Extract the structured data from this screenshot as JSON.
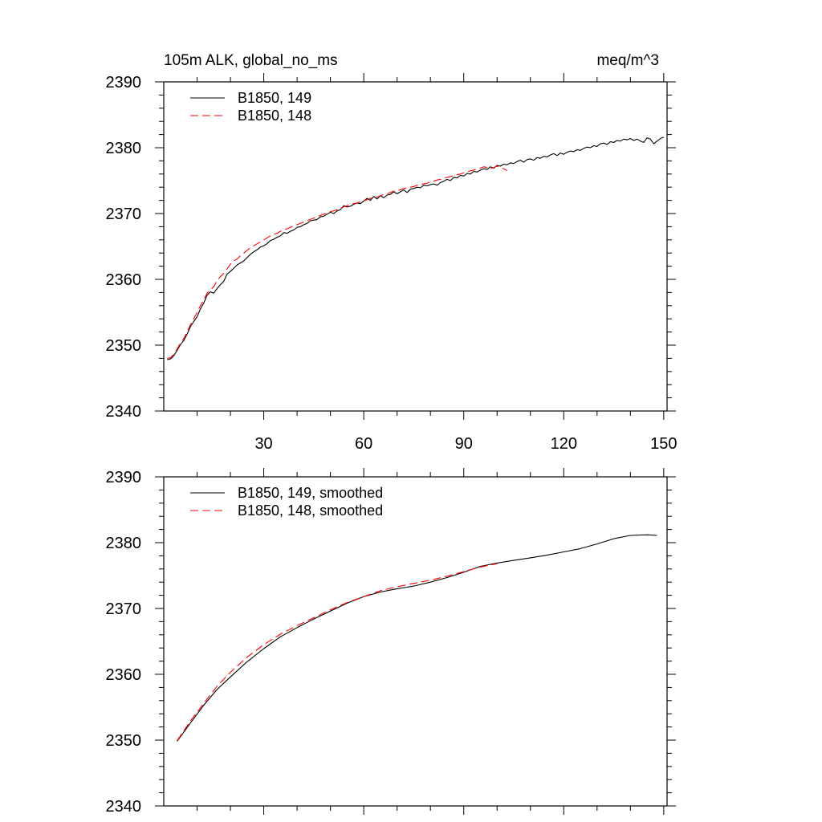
{
  "header": {
    "title": "105m ALK, global_no_ms",
    "units": "meq/m^3"
  },
  "colors": {
    "series_1": "#000000",
    "series_2": "#ff0000"
  },
  "chart_data": [
    {
      "type": "line",
      "title": "105m ALK, global_no_ms",
      "units": "meq/m^3",
      "xlim": [
        0,
        151
      ],
      "ylim": [
        2340,
        2390
      ],
      "xticks": [
        30,
        60,
        90,
        120,
        150
      ],
      "yticks": [
        2340,
        2350,
        2360,
        2370,
        2380,
        2390
      ],
      "legend": "top-left",
      "grid": false,
      "series": [
        {
          "name": "B1850, 149",
          "style": "solid",
          "x": [
            1,
            2,
            3,
            4,
            5,
            6,
            7,
            8,
            9,
            10,
            11,
            12,
            13,
            14,
            15,
            16,
            17,
            18,
            19,
            20,
            21,
            22,
            23,
            24,
            25,
            26,
            27,
            28,
            29,
            30,
            31,
            32,
            33,
            34,
            35,
            36,
            37,
            38,
            39,
            40,
            41,
            42,
            43,
            44,
            45,
            46,
            47,
            48,
            49,
            50,
            51,
            52,
            53,
            54,
            55,
            56,
            57,
            58,
            59,
            60,
            61,
            62,
            63,
            64,
            65,
            66,
            67,
            68,
            69,
            70,
            71,
            72,
            73,
            74,
            75,
            76,
            77,
            78,
            79,
            80,
            81,
            82,
            83,
            84,
            85,
            86,
            87,
            88,
            89,
            90,
            91,
            92,
            93,
            94,
            95,
            96,
            97,
            98,
            99,
            100,
            101,
            102,
            103,
            104,
            105,
            106,
            107,
            108,
            109,
            110,
            111,
            112,
            113,
            114,
            115,
            116,
            117,
            118,
            119,
            120,
            121,
            122,
            123,
            124,
            125,
            126,
            127,
            128,
            129,
            130,
            131,
            132,
            133,
            134,
            135,
            136,
            137,
            138,
            139,
            140,
            141,
            142,
            143,
            144,
            145,
            146,
            147,
            148,
            149,
            150
          ],
          "y": [
            2347.8,
            2347.9,
            2348.4,
            2349.2,
            2350.1,
            2350.7,
            2351.7,
            2352.8,
            2353.6,
            2354.3,
            2355.5,
            2356.4,
            2357.6,
            2358.1,
            2357.9,
            2358.6,
            2359.2,
            2359.7,
            2360.8,
            2361.2,
            2361.7,
            2362.2,
            2362.5,
            2362.8,
            2363.3,
            2363.8,
            2364.2,
            2364.5,
            2364.9,
            2365.1,
            2365.4,
            2365.9,
            2366.1,
            2366.4,
            2366.6,
            2367.1,
            2367.0,
            2367.3,
            2367.5,
            2367.9,
            2368.0,
            2368.3,
            2368.5,
            2368.9,
            2369.0,
            2369.1,
            2369.5,
            2369.6,
            2369.9,
            2370.2,
            2370.0,
            2370.4,
            2370.6,
            2371.2,
            2371.0,
            2371.1,
            2371.4,
            2371.6,
            2371.5,
            2371.9,
            2372.3,
            2372.0,
            2372.6,
            2372.2,
            2372.7,
            2372.4,
            2372.8,
            2372.9,
            2373.3,
            2373.0,
            2373.3,
            2373.6,
            2373.2,
            2373.7,
            2373.8,
            2374.0,
            2373.9,
            2374.3,
            2374.2,
            2374.4,
            2374.5,
            2374.3,
            2374.7,
            2374.9,
            2375.2,
            2375.0,
            2375.5,
            2375.4,
            2375.8,
            2375.7,
            2376.1,
            2376.0,
            2376.4,
            2376.3,
            2376.6,
            2376.8,
            2376.7,
            2377.1,
            2376.9,
            2377.3,
            2377.2,
            2377.5,
            2377.4,
            2377.7,
            2377.6,
            2377.9,
            2378.1,
            2377.8,
            2378.2,
            2378.3,
            2378.1,
            2378.5,
            2378.4,
            2378.7,
            2378.6,
            2378.9,
            2379.1,
            2378.8,
            2379.2,
            2379.0,
            2379.3,
            2379.5,
            2379.4,
            2379.7,
            2379.6,
            2379.9,
            2380.1,
            2380.0,
            2380.3,
            2380.2,
            2380.6,
            2380.7,
            2380.5,
            2380.9,
            2380.8,
            2381.1,
            2381.0,
            2381.3,
            2381.2,
            2381.4,
            2381.1,
            2381.3,
            2381.0,
            2380.8,
            2381.5,
            2381.3,
            2380.6,
            2381.0,
            2381.4,
            2381.6
          ]
        },
        {
          "name": "B1850, 148",
          "style": "dashed",
          "x": [
            1,
            2,
            3,
            4,
            5,
            6,
            7,
            8,
            9,
            10,
            11,
            12,
            13,
            14,
            15,
            16,
            17,
            18,
            19,
            20,
            21,
            22,
            23,
            24,
            25,
            26,
            27,
            28,
            29,
            30,
            31,
            32,
            33,
            34,
            35,
            36,
            37,
            38,
            39,
            40,
            41,
            42,
            43,
            44,
            45,
            46,
            47,
            48,
            49,
            50,
            51,
            52,
            53,
            54,
            55,
            56,
            57,
            58,
            59,
            60,
            61,
            62,
            63,
            64,
            65,
            66,
            67,
            68,
            69,
            70,
            71,
            72,
            73,
            74,
            75,
            76,
            77,
            78,
            79,
            80,
            81,
            82,
            83,
            84,
            85,
            86,
            87,
            88,
            89,
            90,
            91,
            92,
            93,
            94,
            95,
            96,
            97,
            98,
            99,
            100,
            101,
            102,
            103
          ],
          "y": [
            2348.0,
            2348.1,
            2348.6,
            2349.4,
            2350.3,
            2351.0,
            2352.0,
            2353.1,
            2354.0,
            2355.0,
            2356.0,
            2356.9,
            2357.9,
            2358.4,
            2358.9,
            2359.8,
            2360.4,
            2360.9,
            2361.6,
            2362.3,
            2362.8,
            2363.1,
            2363.6,
            2364.0,
            2364.4,
            2364.8,
            2365.1,
            2365.4,
            2365.7,
            2366.0,
            2366.3,
            2366.6,
            2366.8,
            2367.0,
            2367.3,
            2367.5,
            2367.7,
            2367.9,
            2368.1,
            2368.3,
            2368.5,
            2368.7,
            2368.9,
            2369.1,
            2369.3,
            2369.5,
            2369.7,
            2369.9,
            2370.1,
            2370.3,
            2370.4,
            2370.6,
            2370.8,
            2371.0,
            2371.2,
            2371.4,
            2371.5,
            2371.6,
            2371.8,
            2372.0,
            2372.1,
            2372.3,
            2372.4,
            2372.5,
            2372.7,
            2372.9,
            2373.0,
            2373.2,
            2373.4,
            2373.5,
            2373.6,
            2373.8,
            2373.9,
            2374.0,
            2374.1,
            2374.3,
            2374.4,
            2374.5,
            2374.6,
            2374.8,
            2374.9,
            2375.1,
            2375.2,
            2375.3,
            2375.5,
            2375.6,
            2375.8,
            2375.9,
            2376.0,
            2376.2,
            2376.3,
            2376.5,
            2376.6,
            2376.8,
            2376.9,
            2377.1,
            2377.0,
            2376.8,
            2377.0,
            2377.2,
            2377.0,
            2376.8,
            2376.5
          ]
        }
      ]
    },
    {
      "type": "line",
      "xlim": [
        0,
        151
      ],
      "ylim": [
        2340,
        2390
      ],
      "yticks": [
        2340,
        2350,
        2360,
        2370,
        2380,
        2390
      ],
      "legend": "top-left",
      "grid": false,
      "series": [
        {
          "name": "B1850, 149, smoothed",
          "style": "solid",
          "x": [
            4,
            8,
            12,
            16,
            20,
            25,
            30,
            35,
            40,
            45,
            50,
            55,
            60,
            65,
            70,
            75,
            80,
            85,
            90,
            95,
            100,
            105,
            110,
            115,
            120,
            125,
            130,
            135,
            140,
            145,
            148
          ],
          "y": [
            2349.8,
            2352.6,
            2355.3,
            2357.7,
            2359.6,
            2361.9,
            2363.9,
            2365.7,
            2367.1,
            2368.4,
            2369.6,
            2370.8,
            2371.8,
            2372.5,
            2373.0,
            2373.4,
            2374.0,
            2374.7,
            2375.5,
            2376.4,
            2376.9,
            2377.3,
            2377.7,
            2378.1,
            2378.6,
            2379.1,
            2379.8,
            2380.6,
            2381.1,
            2381.2,
            2381.1
          ]
        },
        {
          "name": "B1850, 148, smoothed",
          "style": "dashed",
          "x": [
            4,
            8,
            12,
            16,
            20,
            25,
            30,
            35,
            40,
            45,
            50,
            55,
            60,
            65,
            70,
            75,
            80,
            85,
            90,
            95,
            100
          ],
          "y": [
            2349.9,
            2352.9,
            2355.6,
            2358.2,
            2360.3,
            2362.6,
            2364.5,
            2366.1,
            2367.4,
            2368.6,
            2369.8,
            2370.9,
            2371.8,
            2372.7,
            2373.3,
            2373.8,
            2374.3,
            2374.9,
            2375.6,
            2376.3,
            2376.8
          ]
        }
      ]
    }
  ]
}
